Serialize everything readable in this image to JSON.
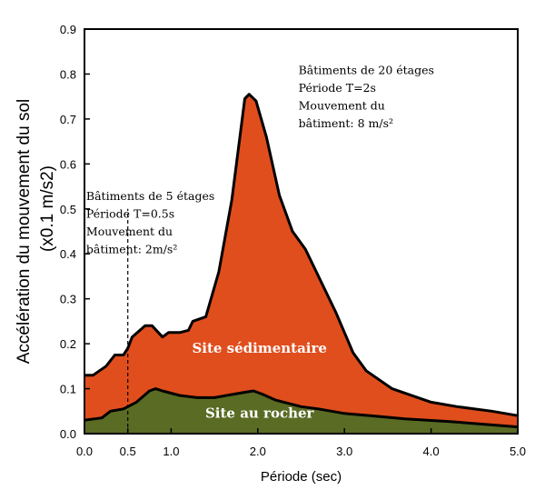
{
  "chart_data": {
    "type": "area",
    "xlabel": "Période (sec)",
    "ylabel_line1": "Accélération du mouvement du sol",
    "ylabel_line2": "(x0.1 m/s2)",
    "xlim": [
      0,
      5
    ],
    "ylim": [
      0,
      0.9
    ],
    "x_ticks": [
      {
        "value": 0.0,
        "label": "0.0"
      },
      {
        "value": 0.5,
        "label": "0.5"
      },
      {
        "value": 1.0,
        "label": "1.0"
      },
      {
        "value": 2.0,
        "label": "2.0"
      },
      {
        "value": 3.0,
        "label": "3.0"
      },
      {
        "value": 4.0,
        "label": "4.0"
      },
      {
        "value": 5.0,
        "label": "5.0"
      }
    ],
    "y_ticks": [
      {
        "value": 0.0,
        "label": "0.0"
      },
      {
        "value": 0.1,
        "label": "0.1"
      },
      {
        "value": 0.2,
        "label": "0.2"
      },
      {
        "value": 0.3,
        "label": "0.3"
      },
      {
        "value": 0.4,
        "label": "0.4"
      },
      {
        "value": 0.5,
        "label": "0.5"
      },
      {
        "value": 0.6,
        "label": "0.6"
      },
      {
        "value": 0.7,
        "label": "0.7"
      },
      {
        "value": 0.8,
        "label": "0.8"
      },
      {
        "value": 0.9,
        "label": "0.9"
      }
    ],
    "series": [
      {
        "name": "Site sédimentaire",
        "color": "#e04e1d",
        "points": [
          [
            0.0,
            0.13
          ],
          [
            0.1,
            0.13
          ],
          [
            0.25,
            0.15
          ],
          [
            0.35,
            0.175
          ],
          [
            0.45,
            0.175
          ],
          [
            0.5,
            0.19
          ],
          [
            0.55,
            0.215
          ],
          [
            0.7,
            0.24
          ],
          [
            0.78,
            0.24
          ],
          [
            0.9,
            0.215
          ],
          [
            0.97,
            0.225
          ],
          [
            1.1,
            0.225
          ],
          [
            1.2,
            0.23
          ],
          [
            1.25,
            0.25
          ],
          [
            1.4,
            0.26
          ],
          [
            1.55,
            0.36
          ],
          [
            1.7,
            0.52
          ],
          [
            1.85,
            0.745
          ],
          [
            1.9,
            0.755
          ],
          [
            1.98,
            0.74
          ],
          [
            2.1,
            0.66
          ],
          [
            2.25,
            0.53
          ],
          [
            2.4,
            0.45
          ],
          [
            2.55,
            0.41
          ],
          [
            2.7,
            0.35
          ],
          [
            2.9,
            0.27
          ],
          [
            3.1,
            0.18
          ],
          [
            3.25,
            0.14
          ],
          [
            3.55,
            0.1
          ],
          [
            4.0,
            0.07
          ],
          [
            4.3,
            0.06
          ],
          [
            4.7,
            0.05
          ],
          [
            5.0,
            0.04
          ]
        ]
      },
      {
        "name": "Site au rocher",
        "color": "#5a6b24",
        "points": [
          [
            0.0,
            0.03
          ],
          [
            0.2,
            0.035
          ],
          [
            0.3,
            0.05
          ],
          [
            0.45,
            0.055
          ],
          [
            0.6,
            0.07
          ],
          [
            0.75,
            0.095
          ],
          [
            0.82,
            0.1
          ],
          [
            0.9,
            0.095
          ],
          [
            1.1,
            0.085
          ],
          [
            1.3,
            0.08
          ],
          [
            1.5,
            0.08
          ],
          [
            1.7,
            0.087
          ],
          [
            1.85,
            0.092
          ],
          [
            1.95,
            0.095
          ],
          [
            2.05,
            0.088
          ],
          [
            2.2,
            0.075
          ],
          [
            2.5,
            0.06
          ],
          [
            2.7,
            0.055
          ],
          [
            3.0,
            0.045
          ],
          [
            3.3,
            0.04
          ],
          [
            3.7,
            0.033
          ],
          [
            4.2,
            0.027
          ],
          [
            5.0,
            0.015
          ]
        ]
      }
    ],
    "series_labels": [
      {
        "text": "Site sédimentaire",
        "x": 2.02,
        "y": 0.18
      },
      {
        "text": "Site au rocher",
        "x": 2.02,
        "y": 0.035
      }
    ],
    "reference_line": {
      "x": 0.5,
      "y_from": 0,
      "y_to": 0.5,
      "style": "dashed"
    },
    "annotations": [
      {
        "lines": [
          "Bâtiments de 5 étages",
          "Période T=0.5s",
          "Mouvement du",
          "bâtiment: 2m/s²"
        ],
        "x": 0.02,
        "y": 0.52
      },
      {
        "lines": [
          "Bâtiments de 20 étages",
          "Période T=2s",
          "Mouvement du",
          "bâtiment: 8 m/s²"
        ],
        "x": 2.47,
        "y": 0.8
      }
    ],
    "grid": false,
    "legend": "none"
  }
}
